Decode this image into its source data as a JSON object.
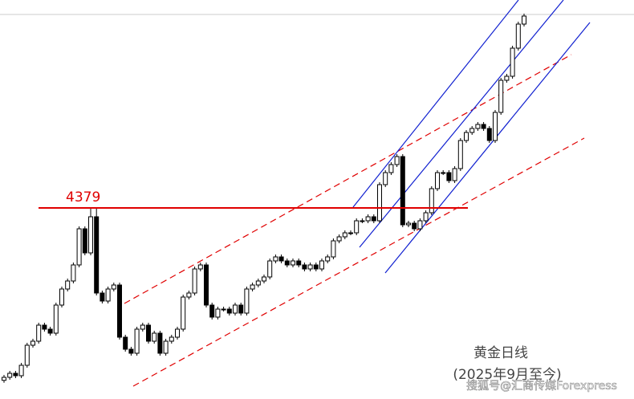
{
  "chart_data": {
    "type": "candlestick",
    "title": "黄金日线",
    "subtitle": "(2025年9月至今)",
    "watermark": "搜狐号@汇商传媒Forexpress",
    "level": 4379,
    "ylim": [
      3427,
      5415
    ],
    "up_color": "#ffffff",
    "down_color": "#000000",
    "level_color": "#e00000",
    "open": [
      3520,
      3535,
      3555,
      3543,
      3595,
      3695,
      3715,
      3795,
      3775,
      3755,
      3895,
      3975,
      4015,
      4095,
      4275,
      4155,
      4335,
      3955,
      3915,
      3975,
      3995,
      3735,
      3675,
      3655,
      3775,
      3795,
      3715,
      3755,
      3655,
      3715,
      3735,
      3775,
      3935,
      3955,
      4075,
      4095,
      3895,
      3835,
      3875,
      3875,
      3855,
      3895,
      3855,
      3975,
      3995,
      4015,
      4035,
      4115,
      4135,
      4115,
      4095,
      4115,
      4095,
      4075,
      4095,
      4075,
      4115,
      4135,
      4215,
      4235,
      4255,
      4255,
      4315,
      4315,
      4335,
      4315,
      4495,
      4555,
      4595,
      4635,
      4295,
      4303,
      4275,
      4315,
      4355,
      4475,
      4555,
      4555,
      4515,
      4575,
      4715,
      4755,
      4775,
      4795,
      4775,
      4715,
      4855,
      5015,
      5035,
      5175,
      5295
    ],
    "high": [
      3547,
      3567,
      3567,
      3607,
      3707,
      3727,
      3807,
      3807,
      3787,
      3907,
      3987,
      4027,
      4107,
      4287,
      4287,
      4379,
      4379,
      3967,
      3987,
      4007,
      4007,
      3747,
      3687,
      3787,
      3807,
      3807,
      3767,
      3767,
      3727,
      3747,
      3787,
      3947,
      3967,
      4087,
      4107,
      4107,
      3907,
      3887,
      3887,
      3887,
      3907,
      3907,
      3987,
      4007,
      4027,
      4047,
      4127,
      4147,
      4147,
      4127,
      4127,
      4127,
      4107,
      4107,
      4107,
      4127,
      4147,
      4227,
      4247,
      4267,
      4267,
      4327,
      4327,
      4347,
      4347,
      4507,
      4567,
      4607,
      4647,
      4647,
      4315,
      4315,
      4327,
      4367,
      4487,
      4567,
      4567,
      4567,
      4587,
      4727,
      4767,
      4787,
      4807,
      4807,
      4787,
      4867,
      5027,
      5047,
      5187,
      5307,
      5347
    ],
    "low": [
      3508,
      3523,
      3531,
      3531,
      3583,
      3683,
      3703,
      3763,
      3743,
      3743,
      3883,
      3963,
      4003,
      4083,
      4143,
      4143,
      3943,
      3903,
      3903,
      3963,
      3723,
      3663,
      3643,
      3643,
      3763,
      3703,
      3703,
      3643,
      3643,
      3703,
      3723,
      3763,
      3923,
      3943,
      4063,
      3883,
      3823,
      3823,
      3863,
      3843,
      3843,
      3843,
      3843,
      3963,
      3983,
      4003,
      4023,
      4103,
      4103,
      4083,
      4083,
      4083,
      4063,
      4063,
      4063,
      4063,
      4103,
      4123,
      4203,
      4223,
      4243,
      4243,
      4303,
      4303,
      4303,
      4303,
      4483,
      4543,
      4583,
      4283,
      4283,
      4263,
      4263,
      4303,
      4343,
      4463,
      4543,
      4503,
      4503,
      4563,
      4703,
      4743,
      4763,
      4763,
      4703,
      4703,
      4843,
      5003,
      5023,
      5163,
      5283
    ],
    "close": [
      3535,
      3555,
      3543,
      3595,
      3695,
      3715,
      3795,
      3775,
      3755,
      3895,
      3975,
      4015,
      4095,
      4275,
      4155,
      4335,
      3955,
      3915,
      3975,
      3995,
      3735,
      3675,
      3655,
      3775,
      3795,
      3715,
      3755,
      3655,
      3715,
      3735,
      3775,
      3935,
      3955,
      4075,
      4095,
      3895,
      3835,
      3875,
      3875,
      3855,
      3895,
      3855,
      3975,
      3995,
      4015,
      4035,
      4115,
      4135,
      4115,
      4095,
      4115,
      4095,
      4075,
      4095,
      4075,
      4115,
      4135,
      4215,
      4235,
      4255,
      4255,
      4315,
      4315,
      4335,
      4315,
      4495,
      4555,
      4595,
      4635,
      4295,
      4303,
      4275,
      4315,
      4355,
      4475,
      4555,
      4555,
      4515,
      4575,
      4715,
      4755,
      4775,
      4795,
      4775,
      4715,
      4855,
      5015,
      5035,
      5175,
      5295,
      5335
    ]
  }
}
